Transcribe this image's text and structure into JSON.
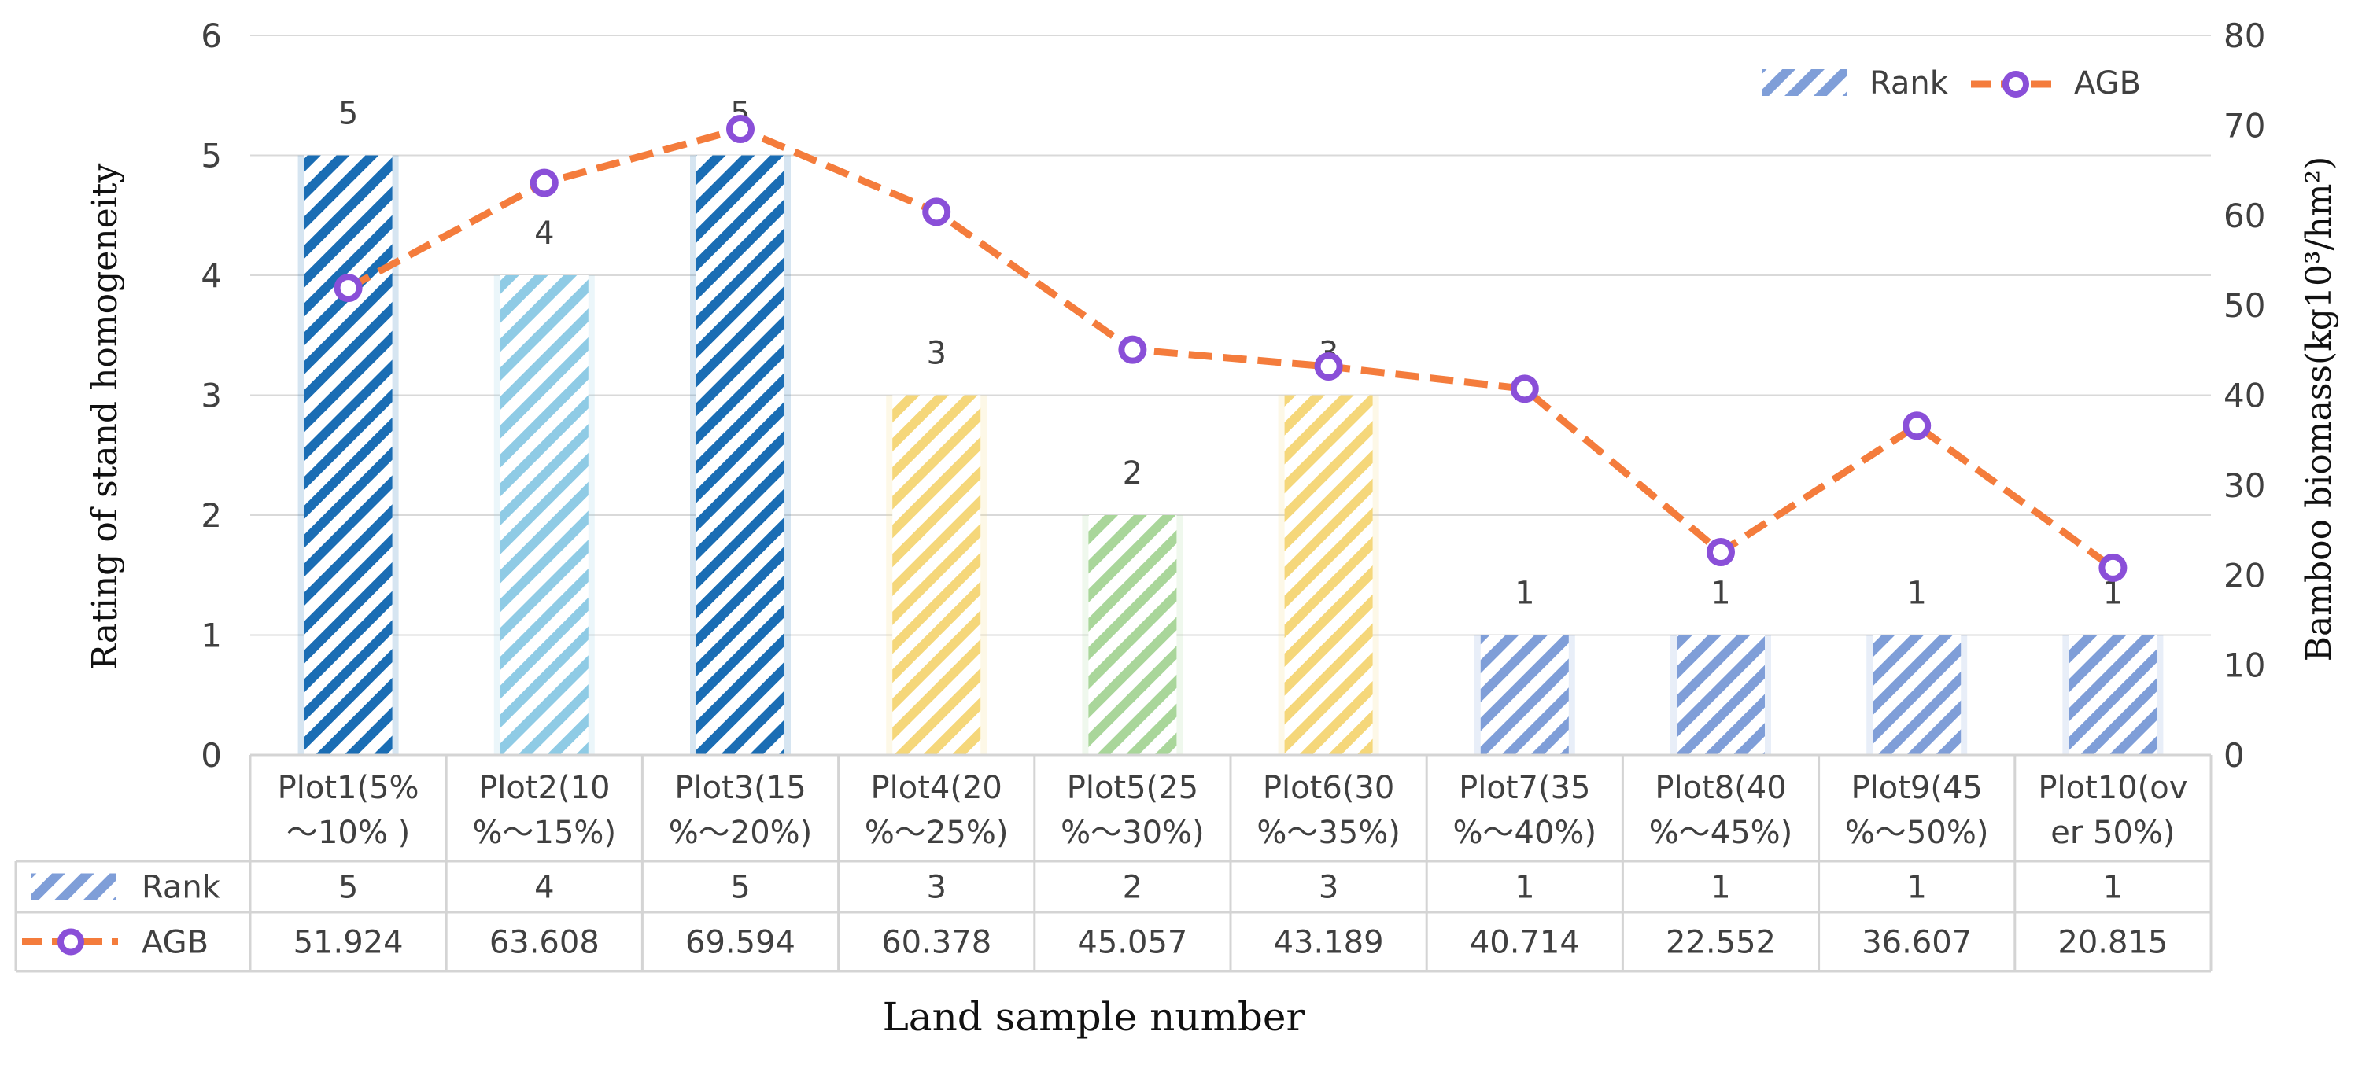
{
  "chart_data": {
    "type": "bar",
    "title": "",
    "xlabel": "Land sample number",
    "ylabel": "Rating of stand homogeneity",
    "y2label": "Bamboo biomass(kg10³/hm²)",
    "ylim": [
      0,
      6
    ],
    "y2lim": [
      0,
      80
    ],
    "yticks": [
      "0",
      "1",
      "2",
      "3",
      "4",
      "5",
      "6"
    ],
    "y2ticks": [
      "0",
      "10",
      "20",
      "30",
      "40",
      "50",
      "60",
      "70",
      "80"
    ],
    "grid": true,
    "legend_position": "top-right",
    "categories": [
      {
        "line1": "Plot1(5%",
        "line2": "～10% )"
      },
      {
        "line1": "Plot2(10",
        "line2": "%～15%)"
      },
      {
        "line1": "Plot3(15",
        "line2": "%～20%)"
      },
      {
        "line1": "Plot4(20",
        "line2": "%～25%)"
      },
      {
        "line1": "Plot5(25",
        "line2": "%～30%)"
      },
      {
        "line1": "Plot6(30",
        "line2": "%～35%)"
      },
      {
        "line1": "Plot7(35",
        "line2": "%～40%)"
      },
      {
        "line1": "Plot8(40",
        "line2": "%～45%)"
      },
      {
        "line1": "Plot9(45",
        "line2": "%～50%)"
      },
      {
        "line1": "Plot10(ov",
        "line2": "er 50%)"
      }
    ],
    "series": [
      {
        "name": "Rank",
        "type": "bar",
        "axis": "left",
        "values": [
          5,
          4,
          5,
          3,
          2,
          3,
          1,
          1,
          1,
          1
        ],
        "labels": [
          "5",
          "4",
          "5",
          "3",
          "2",
          "3",
          "1",
          "1",
          "1",
          "1"
        ],
        "colors": [
          "#1a6db4",
          "#8fcbe5",
          "#1a6db4",
          "#f5d77a",
          "#a9d69a",
          "#f5d77a",
          "#7f9ed8",
          "#7f9ed8",
          "#7f9ed8",
          "#7f9ed8"
        ]
      },
      {
        "name": "AGB",
        "type": "line",
        "axis": "right",
        "values": [
          51.924,
          63.608,
          69.594,
          60.378,
          45.057,
          43.189,
          40.714,
          22.552,
          36.607,
          20.815
        ],
        "labels": [
          "51.924",
          "63.608",
          "69.594",
          "60.378",
          "45.057",
          "43.189",
          "40.714",
          "22.552",
          "36.607",
          "20.815"
        ],
        "line_color": "#f47c3c",
        "marker_color": "#8a4fd8"
      }
    ],
    "legend_bar_color": "#7f9ed8"
  }
}
